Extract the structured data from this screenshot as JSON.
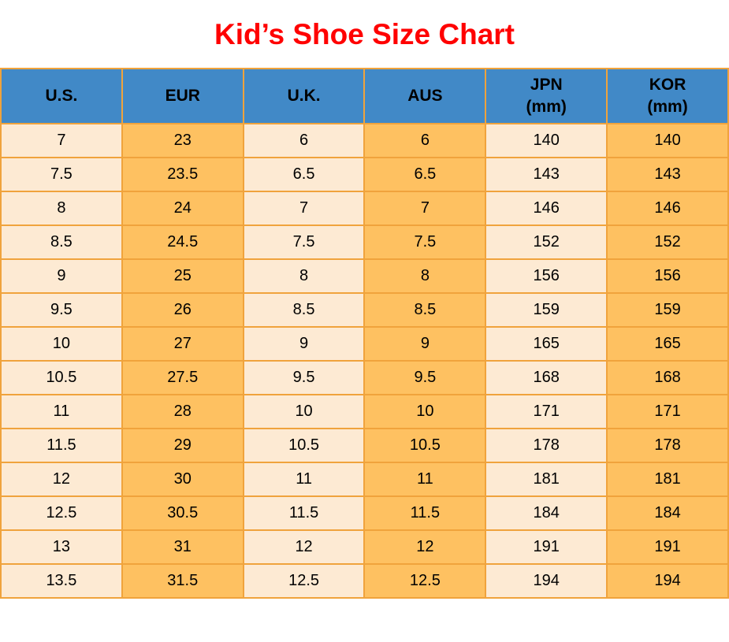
{
  "page": {
    "title": "Kid’s Shoe Size Chart"
  },
  "colors": {
    "title_red": "#FF0000",
    "header_blue": "#4189C7",
    "cell_cream": "#FDEAD3",
    "cell_orange": "#FEC161",
    "grid_orange": "#F0A33C",
    "text_black": "#000000",
    "page_background": "#FFFFFF"
  },
  "chart_data": {
    "type": "table",
    "title": "Kid’s Shoe Size Chart",
    "columns": [
      {
        "id": "us",
        "lines": [
          "U.S."
        ]
      },
      {
        "id": "eur",
        "lines": [
          "EUR"
        ]
      },
      {
        "id": "uk",
        "lines": [
          "U.K."
        ]
      },
      {
        "id": "aus",
        "lines": [
          "AUS"
        ]
      },
      {
        "id": "jpn",
        "lines": [
          "JPN",
          "(mm)"
        ]
      },
      {
        "id": "kor",
        "lines": [
          "KOR",
          "(mm)"
        ]
      }
    ],
    "rows": [
      [
        "7",
        "23",
        "6",
        "6",
        "140",
        "140"
      ],
      [
        "7.5",
        "23.5",
        "6.5",
        "6.5",
        "143",
        "143"
      ],
      [
        "8",
        "24",
        "7",
        "7",
        "146",
        "146"
      ],
      [
        "8.5",
        "24.5",
        "7.5",
        "7.5",
        "152",
        "152"
      ],
      [
        "9",
        "25",
        "8",
        "8",
        "156",
        "156"
      ],
      [
        "9.5",
        "26",
        "8.5",
        "8.5",
        "159",
        "159"
      ],
      [
        "10",
        "27",
        "9",
        "9",
        "165",
        "165"
      ],
      [
        "10.5",
        "27.5",
        "9.5",
        "9.5",
        "168",
        "168"
      ],
      [
        "11",
        "28",
        "10",
        "10",
        "171",
        "171"
      ],
      [
        "11.5",
        "29",
        "10.5",
        "10.5",
        "178",
        "178"
      ],
      [
        "12",
        "30",
        "11",
        "11",
        "181",
        "181"
      ],
      [
        "12.5",
        "30.5",
        "11.5",
        "11.5",
        "184",
        "184"
      ],
      [
        "13",
        "31",
        "12",
        "12",
        "191",
        "191"
      ],
      [
        "13.5",
        "31.5",
        "12.5",
        "12.5",
        "194",
        "194"
      ]
    ],
    "layout": {
      "column_stripe_pattern": [
        "cream",
        "orange"
      ],
      "header_style": "blue",
      "grid": "orange-borders",
      "legend": "none"
    }
  }
}
